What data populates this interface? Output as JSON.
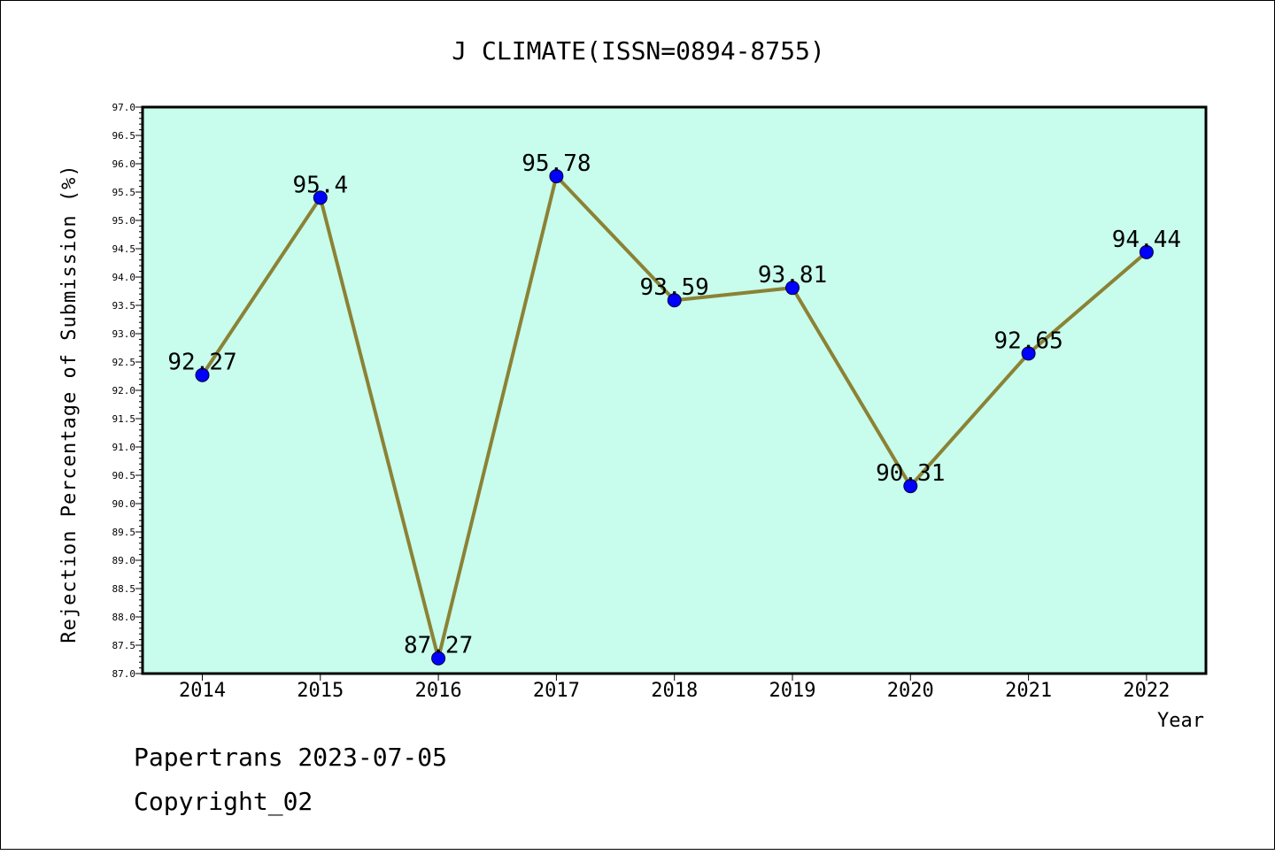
{
  "chart_data": {
    "type": "line",
    "title": "J CLIMATE(ISSN=0894-8755)",
    "xlabel": "Year",
    "ylabel": "Rejection Percentage of Submission (%)",
    "categories": [
      "2014",
      "2015",
      "2016",
      "2017",
      "2018",
      "2019",
      "2020",
      "2021",
      "2022"
    ],
    "values": [
      92.27,
      95.4,
      87.27,
      95.78,
      93.59,
      93.81,
      90.31,
      92.65,
      94.44
    ],
    "data_labels": [
      "92.27",
      "95.4",
      "87.27",
      "95.78",
      "93.59",
      "93.81",
      "90.31",
      "92.65",
      "94.44"
    ],
    "ylim": [
      87.0,
      97.0
    ],
    "yticks": [
      "87.0",
      "87.5",
      "88.0",
      "88.5",
      "89.0",
      "89.5",
      "90.0",
      "90.5",
      "91.0",
      "91.5",
      "92.0",
      "92.5",
      "93.0",
      "93.5",
      "94.0",
      "94.5",
      "95.0",
      "95.5",
      "96.0",
      "96.5",
      "97.0"
    ],
    "grid": false,
    "colors": {
      "plot_background": "#c8fcec",
      "line": "#8b8235",
      "marker": "#0000ff"
    }
  },
  "footer": {
    "line1": "Papertrans 2023-07-05",
    "line2": "Copyright_02"
  }
}
